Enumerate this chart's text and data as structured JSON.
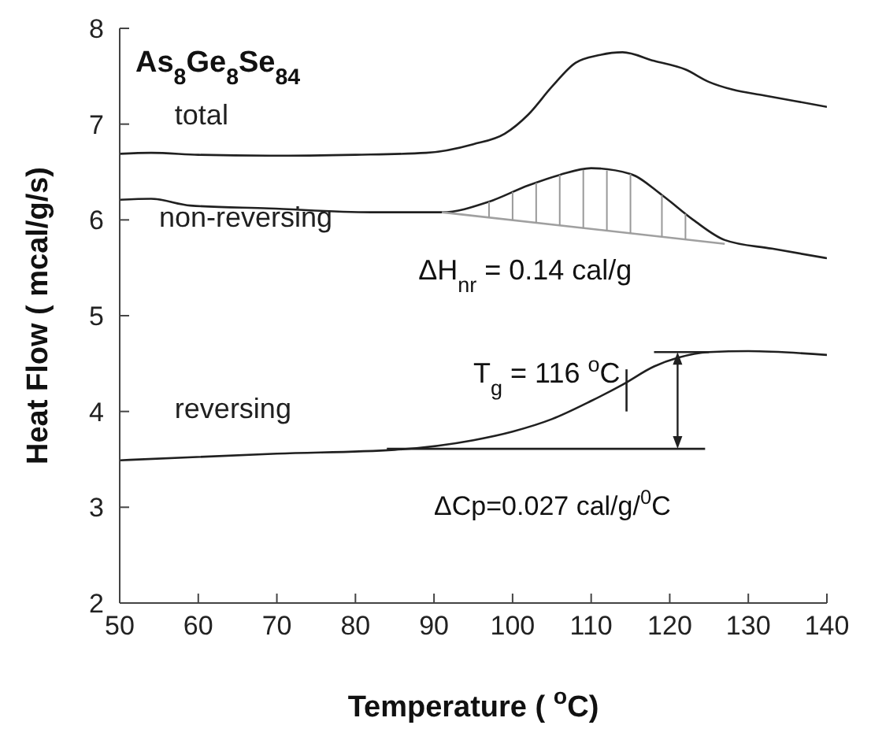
{
  "chart_data": {
    "type": "line",
    "xlabel": "Temperature ( $^{o}$C)",
    "ylabel": "Heat Flow ( mcal/g/s)",
    "xlim": [
      50,
      140
    ],
    "xticks": [
      50,
      60,
      70,
      80,
      90,
      100,
      110,
      120,
      130,
      140
    ],
    "ylim": [
      2,
      8
    ],
    "yticks": [
      2,
      3,
      4,
      5,
      6,
      7,
      8
    ],
    "grid": false,
    "legend": false,
    "marker": "none",
    "line_style": "solid",
    "annotations": [
      "As$_{8}$Ge$_{8}$Se$_{84}$",
      {
        "text": "ΔH$_{nr}$ = 0.14 cal/g",
        "x": 109,
        "y": 5.92
      },
      "T$_{g}$ = 116 $^{o}$C",
      "ΔCp=0.027 cal/g/$^{0}$C"
    ],
    "series": [
      {
        "name": "total",
        "color": "#202020",
        "x": [
          50,
          54,
          60,
          69,
          80,
          89,
          95,
          99,
          102,
          105,
          108,
          111,
          114,
          118,
          122,
          125,
          128,
          132,
          136,
          140
        ],
        "values": [
          6.69,
          6.7,
          6.68,
          6.67,
          6.68,
          6.7,
          6.79,
          6.9,
          7.1,
          7.39,
          7.64,
          7.72,
          7.75,
          7.66,
          7.57,
          7.44,
          7.36,
          7.3,
          7.24,
          7.18
        ]
      },
      {
        "name": "non-reversing",
        "color": "#202020",
        "x": [
          50,
          54,
          59,
          69,
          82,
          91,
          97,
          102,
          106,
          110,
          115,
          119,
          123,
          127,
          133,
          140
        ],
        "values": [
          6.21,
          6.22,
          6.15,
          6.12,
          6.08,
          6.08,
          6.19,
          6.36,
          6.47,
          6.54,
          6.48,
          6.26,
          6.0,
          5.79,
          5.7,
          5.6
        ]
      },
      {
        "color": "#a0a0a0",
        "x": [
          91,
          127
        ],
        "values": [
          6.08,
          5.75
        ]
      },
      {
        "name": "reversing",
        "color": "#202020",
        "x": [
          50,
          70,
          85,
          95,
          100,
          105,
          110,
          114,
          118,
          121,
          125,
          130,
          140
        ],
        "values": [
          3.49,
          3.56,
          3.6,
          3.7,
          3.79,
          3.92,
          4.11,
          4.28,
          4.47,
          4.56,
          4.62,
          4.63,
          4.59
        ]
      },
      {
        "color": "#202020",
        "x": [
          84,
          124.5
        ],
        "values": [
          3.61,
          3.61
        ]
      },
      {
        "color": "#202020",
        "x": [
          118,
          125
        ],
        "values": [
          4.62,
          4.62
        ]
      },
      {
        "color": "#202020",
        "x": [
          114.5,
          114.5
        ],
        "values": [
          4.0,
          4.44
        ]
      }
    ]
  }
}
